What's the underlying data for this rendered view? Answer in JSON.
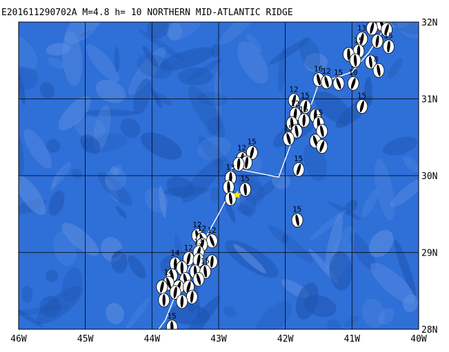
{
  "map": {
    "title": "E201611290702A M=4.8 h= 10 NORTHERN MID-ATLANTIC RIDGE",
    "lon_range": [
      -46,
      -40
    ],
    "lat_range": [
      28,
      32
    ],
    "lat_labels": [
      {
        "value": 32,
        "text": "32N"
      },
      {
        "value": 31,
        "text": "31N"
      },
      {
        "value": 30,
        "text": "30N"
      },
      {
        "value": 29,
        "text": "29N"
      },
      {
        "value": 28,
        "text": "28N"
      }
    ],
    "lon_labels": [
      {
        "value": -46,
        "text": "46W"
      },
      {
        "value": -45,
        "text": "45W"
      },
      {
        "value": -44,
        "text": "44W"
      },
      {
        "value": -43,
        "text": "43W"
      },
      {
        "value": -42,
        "text": "42W"
      },
      {
        "value": -41,
        "text": "41W"
      },
      {
        "value": -40,
        "text": "40W"
      }
    ],
    "colors": {
      "ocean": "#2e6fd8",
      "deep": "#1f55b0",
      "shallow": "#5e8ee0",
      "ridge_line": "#ffffff",
      "epicenter": "#ffee00"
    },
    "epicenter": {
      "lon": -42.72,
      "lat": 29.75
    },
    "ridge_axis": [
      [
        -43.9,
        28.0
      ],
      [
        -43.8,
        28.12
      ],
      [
        -43.6,
        28.55
      ],
      [
        -43.35,
        28.95
      ],
      [
        -43.0,
        29.5
      ],
      [
        -42.85,
        29.75
      ],
      [
        -42.8,
        30.1
      ],
      [
        -42.1,
        29.98
      ],
      [
        -41.9,
        30.45
      ],
      [
        -41.6,
        30.95
      ],
      [
        -41.5,
        31.2
      ],
      [
        -41.0,
        31.35
      ],
      [
        -40.75,
        31.6
      ],
      [
        -40.6,
        31.8
      ],
      [
        -40.45,
        32.0
      ]
    ],
    "events": [
      {
        "lon": -40.55,
        "lat": 31.97,
        "label": "12"
      },
      {
        "lon": -40.48,
        "lat": 31.9,
        "label": "15"
      },
      {
        "lon": -40.7,
        "lat": 31.92,
        "label": "15"
      },
      {
        "lon": -40.85,
        "lat": 31.78,
        "label": "13"
      },
      {
        "lon": -40.62,
        "lat": 31.75,
        "label": ""
      },
      {
        "lon": -40.45,
        "lat": 31.68,
        "label": "15"
      },
      {
        "lon": -40.9,
        "lat": 31.62,
        "label": "15"
      },
      {
        "lon": -41.05,
        "lat": 31.58,
        "label": ""
      },
      {
        "lon": -40.95,
        "lat": 31.5,
        "label": ""
      },
      {
        "lon": -40.72,
        "lat": 31.48,
        "label": ""
      },
      {
        "lon": -40.6,
        "lat": 31.37,
        "label": "8"
      },
      {
        "lon": -41.5,
        "lat": 31.25,
        "label": "16"
      },
      {
        "lon": -41.38,
        "lat": 31.22,
        "label": "12"
      },
      {
        "lon": -41.2,
        "lat": 31.2,
        "label": "15"
      },
      {
        "lon": -40.98,
        "lat": 31.2,
        "label": "10"
      },
      {
        "lon": -40.85,
        "lat": 30.9,
        "label": "15"
      },
      {
        "lon": -41.87,
        "lat": 30.98,
        "label": "12"
      },
      {
        "lon": -41.7,
        "lat": 30.9,
        "label": "15"
      },
      {
        "lon": -41.85,
        "lat": 30.8,
        "label": "12"
      },
      {
        "lon": -41.72,
        "lat": 30.72,
        "label": "15"
      },
      {
        "lon": -41.55,
        "lat": 30.78,
        "label": ""
      },
      {
        "lon": -41.5,
        "lat": 30.68,
        "label": "15"
      },
      {
        "lon": -41.9,
        "lat": 30.68,
        "label": ""
      },
      {
        "lon": -41.83,
        "lat": 30.58,
        "label": ""
      },
      {
        "lon": -41.45,
        "lat": 30.58,
        "label": ""
      },
      {
        "lon": -41.95,
        "lat": 30.48,
        "label": "15"
      },
      {
        "lon": -41.55,
        "lat": 30.45,
        "label": ""
      },
      {
        "lon": -41.45,
        "lat": 30.38,
        "label": ""
      },
      {
        "lon": -41.8,
        "lat": 30.08,
        "label": "15"
      },
      {
        "lon": -42.5,
        "lat": 30.3,
        "label": "15"
      },
      {
        "lon": -42.65,
        "lat": 30.22,
        "label": "12"
      },
      {
        "lon": -42.58,
        "lat": 30.17,
        "label": ""
      },
      {
        "lon": -42.7,
        "lat": 30.15,
        "label": ""
      },
      {
        "lon": -42.82,
        "lat": 29.97,
        "label": "13"
      },
      {
        "lon": -42.85,
        "lat": 29.85,
        "label": ""
      },
      {
        "lon": -42.6,
        "lat": 29.82,
        "label": "15"
      },
      {
        "lon": -42.82,
        "lat": 29.7,
        "label": ""
      },
      {
        "lon": -41.82,
        "lat": 29.42,
        "label": "15"
      },
      {
        "lon": -43.32,
        "lat": 29.22,
        "label": "12"
      },
      {
        "lon": -43.25,
        "lat": 29.17,
        "label": "12"
      },
      {
        "lon": -43.1,
        "lat": 29.15,
        "label": "12"
      },
      {
        "lon": -43.25,
        "lat": 29.1,
        "label": ""
      },
      {
        "lon": -43.3,
        "lat": 29.0,
        "label": "13"
      },
      {
        "lon": -43.45,
        "lat": 28.92,
        "label": "12"
      },
      {
        "lon": -43.3,
        "lat": 28.9,
        "label": ""
      },
      {
        "lon": -43.1,
        "lat": 28.88,
        "label": ""
      },
      {
        "lon": -43.65,
        "lat": 28.85,
        "label": "14"
      },
      {
        "lon": -43.55,
        "lat": 28.8,
        "label": ""
      },
      {
        "lon": -43.35,
        "lat": 28.75,
        "label": ""
      },
      {
        "lon": -43.2,
        "lat": 28.75,
        "label": "15"
      },
      {
        "lon": -43.7,
        "lat": 28.7,
        "label": ""
      },
      {
        "lon": -43.5,
        "lat": 28.65,
        "label": ""
      },
      {
        "lon": -43.3,
        "lat": 28.65,
        "label": ""
      },
      {
        "lon": -43.75,
        "lat": 28.6,
        "label": "14"
      },
      {
        "lon": -43.6,
        "lat": 28.55,
        "label": ""
      },
      {
        "lon": -43.45,
        "lat": 28.55,
        "label": ""
      },
      {
        "lon": -43.85,
        "lat": 28.55,
        "label": ""
      },
      {
        "lon": -43.65,
        "lat": 28.48,
        "label": ""
      },
      {
        "lon": -43.4,
        "lat": 28.42,
        "label": ""
      },
      {
        "lon": -43.55,
        "lat": 28.36,
        "label": ""
      },
      {
        "lon": -43.82,
        "lat": 28.38,
        "label": ""
      },
      {
        "lon": -43.7,
        "lat": 28.03,
        "label": "15"
      }
    ]
  }
}
